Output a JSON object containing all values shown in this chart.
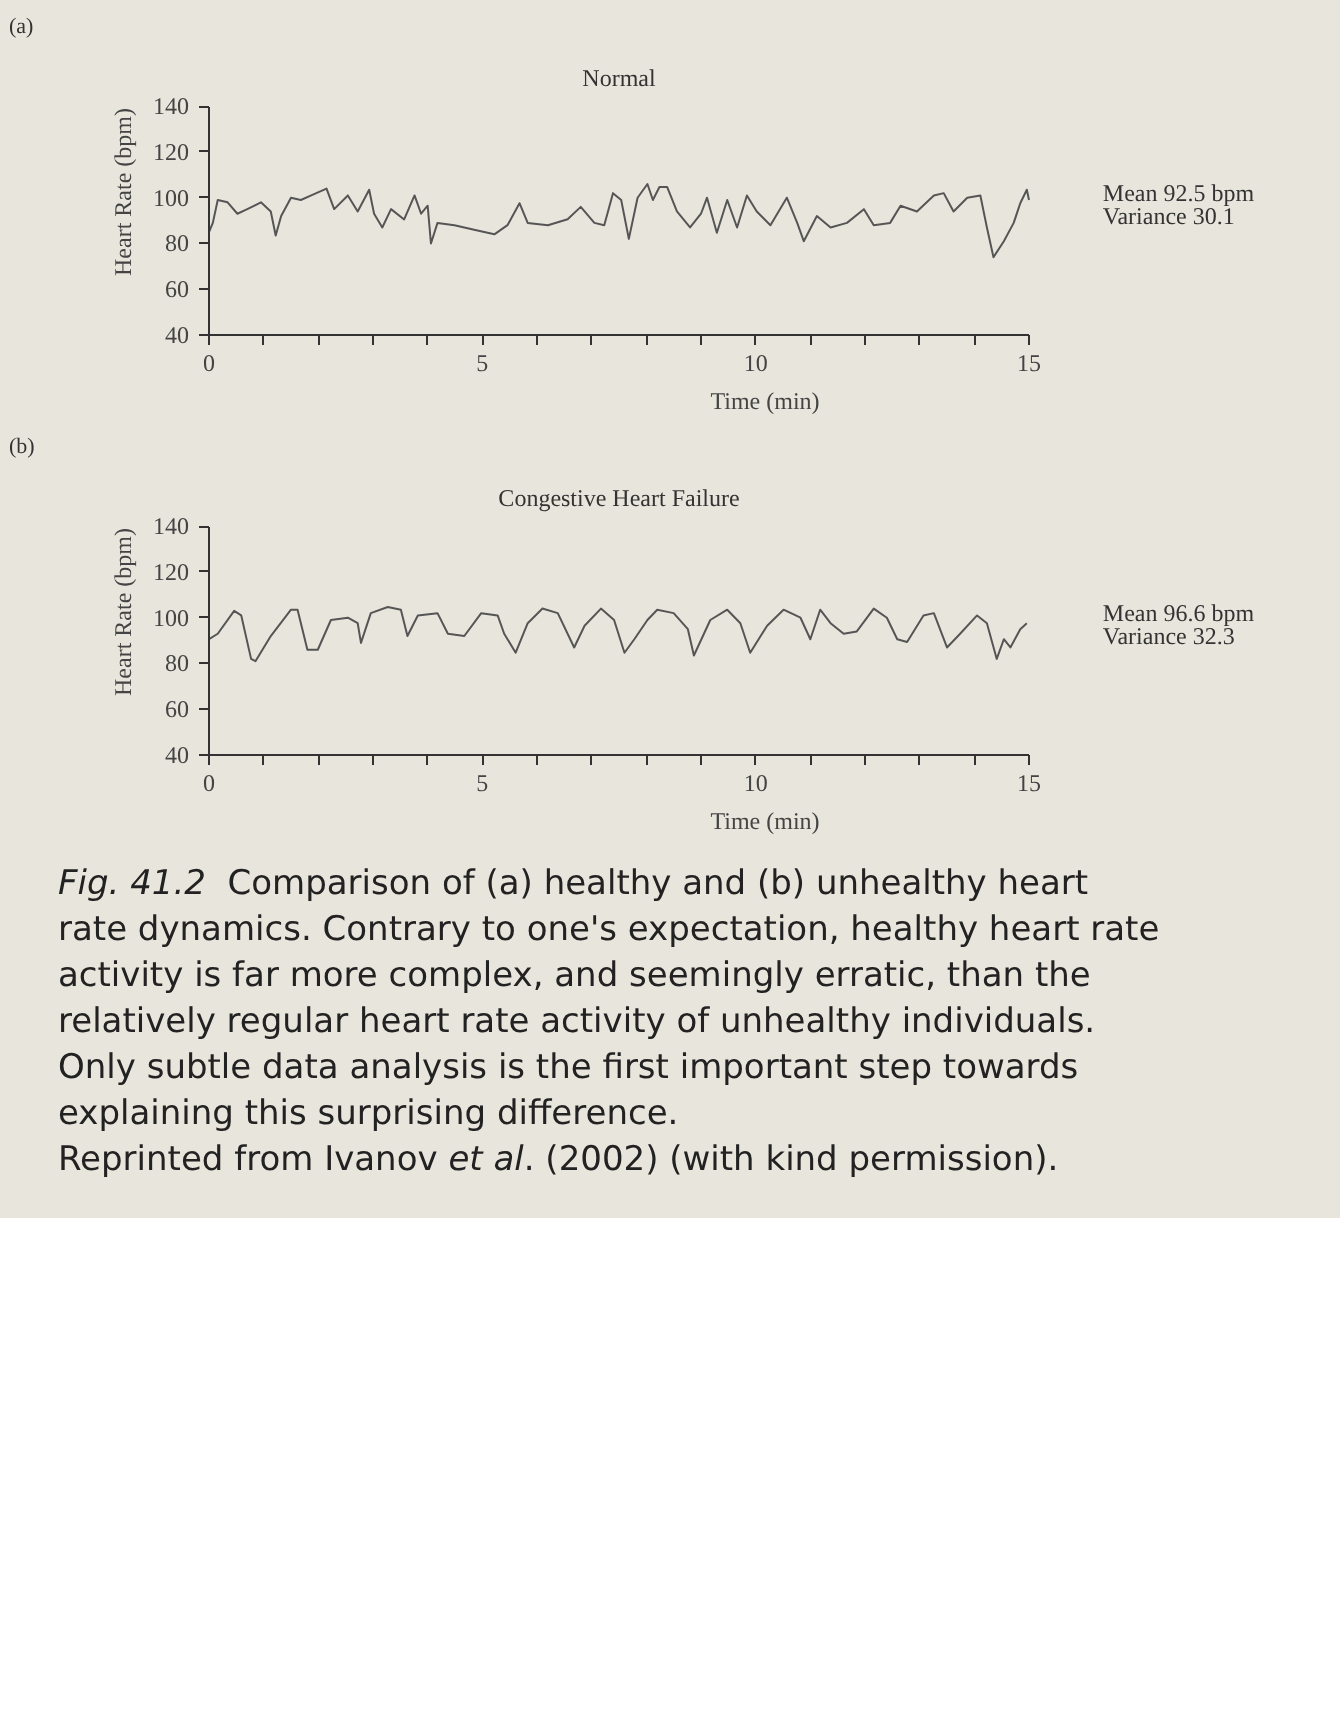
{
  "chart_data": [
    {
      "type": "line",
      "title": "Normal",
      "xlabel": "Time (min)",
      "ylabel": "Heart Rate (bpm)",
      "annotations": [
        "(a)",
        "Mean 92.5 bpm",
        "Variance 30.1"
      ],
      "series": [
        {
          "color": "#555555",
          "x": [
            0,
            0.07,
            0.16,
            0.34,
            0.52,
            0.7,
            0.95,
            1.13,
            1.22,
            1.32,
            1.5,
            1.68,
            1.87,
            2.15,
            2.29,
            2.54,
            2.72,
            2.93,
            3.02,
            3.17,
            3.33,
            3.57,
            3.76,
            3.88,
            4.0,
            4.06,
            4.18,
            4.49,
            4.85,
            5.22,
            5.46,
            5.68,
            5.83,
            6.2,
            6.56,
            6.8,
            7.05,
            7.23,
            7.39,
            7.54,
            7.68,
            7.84,
            8.02,
            8.12,
            8.24,
            8.38,
            8.56,
            8.8,
            9.0,
            9.11,
            9.29,
            9.48,
            9.66,
            9.84,
            10.02,
            10.27,
            10.57,
            10.76,
            10.88,
            11.12,
            11.37,
            11.67,
            11.98,
            12.16,
            12.46,
            12.65,
            12.95,
            13.26,
            13.44,
            13.62,
            13.87,
            14.11,
            14.23,
            14.35,
            14.54,
            14.72,
            14.84,
            14.96,
            15.0
          ],
          "values": [
            85,
            89,
            99,
            98,
            93,
            95,
            98,
            94,
            83.5,
            92,
            100,
            99,
            101,
            104,
            95,
            101,
            94,
            103.5,
            93,
            87,
            95,
            90.5,
            101,
            93,
            96.5,
            80,
            89,
            88,
            86,
            84,
            88,
            97.6,
            89,
            88,
            90.6,
            96,
            89,
            88,
            102,
            99,
            82,
            100,
            106,
            99,
            104.7,
            104.7,
            94,
            87,
            93,
            100,
            84.7,
            99,
            87,
            101,
            94,
            88,
            100,
            89,
            81,
            92,
            87,
            89,
            95,
            88,
            89,
            96.5,
            94,
            101,
            102,
            94,
            100,
            101,
            87,
            74,
            81,
            89,
            97.6,
            103.5,
            99
          ]
        }
      ],
      "xlim": [
        0,
        15
      ],
      "ylim": [
        40,
        140
      ],
      "xticks": [
        0,
        {
          "value": 1,
          "label": null
        },
        {
          "value": 2,
          "label": null
        },
        {
          "value": 3,
          "label": null
        },
        {
          "value": 4,
          "label": null
        },
        5,
        {
          "value": 6,
          "label": null
        },
        {
          "value": 7,
          "label": null
        },
        {
          "value": 8,
          "label": null
        },
        {
          "value": 9,
          "label": null
        },
        10,
        {
          "value": 11,
          "label": null
        },
        {
          "value": 12,
          "label": null
        },
        {
          "value": 13,
          "label": null
        },
        {
          "value": 14,
          "label": null
        },
        15
      ],
      "yticks": [
        40,
        60,
        80,
        100,
        120,
        140
      ],
      "grid": false,
      "marker": "none",
      "line_style": "solid"
    },
    {
      "type": "line",
      "title": "Congestive Heart Failure",
      "xlabel": "Time (min)",
      "ylabel": "Heart Rate (bpm)",
      "annotations": [
        "(b)",
        "Mean 96.6 bpm",
        "Variance 32.3",
        "Fig. 41.2  Comparison of (a) healthy and (b) unhealthy heart rate dynamics. Contrary to one's expectation, healthy heart rate activity is far more complex, and seemingly erratic, than the relatively regular heart rate activity of unhealthy individuals. Only subtle data analysis is the first important step towards explaining this surprising difference.",
        "Reprinted from Ivanov et al. (2002) (with kind permission)."
      ],
      "series": [
        {
          "color": "#555555",
          "x": [
            0,
            0.16,
            0.46,
            0.59,
            0.77,
            0.85,
            1.13,
            1.5,
            1.62,
            1.8,
            1.99,
            2.23,
            2.54,
            2.72,
            2.78,
            2.96,
            3.27,
            3.51,
            3.63,
            3.82,
            4.18,
            4.37,
            4.67,
            4.98,
            5.28,
            5.4,
            5.61,
            5.83,
            6.1,
            6.38,
            6.68,
            6.87,
            7.17,
            7.41,
            7.6,
            7.78,
            8.02,
            8.2,
            8.5,
            8.76,
            8.87,
            9.17,
            9.48,
            9.72,
            9.9,
            10.21,
            10.51,
            10.82,
            11.0,
            11.18,
            11.37,
            11.61,
            11.85,
            12.16,
            12.4,
            12.59,
            12.77,
            13.07,
            13.26,
            13.5,
            13.74,
            14.05,
            14.23,
            14.41,
            14.54,
            14.66,
            14.84,
            14.96
          ],
          "values": [
            90.6,
            93,
            103,
            101,
            82,
            81,
            92,
            103.5,
            103.5,
            86,
            86,
            99,
            100,
            97.6,
            89,
            102,
            104.7,
            103.5,
            92,
            101,
            102,
            93,
            92,
            102,
            101,
            93,
            84.7,
            97.6,
            104,
            102,
            87,
            96.5,
            104,
            99,
            84.7,
            90.6,
            99,
            103.5,
            102,
            95,
            83.5,
            99,
            103.5,
            97.6,
            84.7,
            96.5,
            103.5,
            100,
            90.6,
            103.5,
            97.6,
            93,
            94,
            104,
            100,
            90.6,
            89.4,
            101,
            102,
            87,
            93,
            101,
            97.6,
            82,
            90.6,
            87,
            95,
            97.6
          ]
        }
      ],
      "xlim": [
        0,
        15
      ],
      "ylim": [
        40,
        140
      ],
      "xticks": [
        0,
        {
          "value": 1,
          "label": null
        },
        {
          "value": 2,
          "label": null
        },
        {
          "value": 3,
          "label": null
        },
        {
          "value": 4,
          "label": null
        },
        5,
        {
          "value": 6,
          "label": null
        },
        {
          "value": 7,
          "label": null
        },
        {
          "value": 8,
          "label": null
        },
        {
          "value": 9,
          "label": null
        },
        10,
        {
          "value": 11,
          "label": null
        },
        {
          "value": 12,
          "label": null
        },
        {
          "value": 13,
          "label": null
        },
        {
          "value": 14,
          "label": null
        },
        15
      ],
      "yticks": [
        40,
        60,
        80,
        100,
        120,
        140
      ],
      "grid": false,
      "marker": "none",
      "line_style": "solid"
    }
  ]
}
